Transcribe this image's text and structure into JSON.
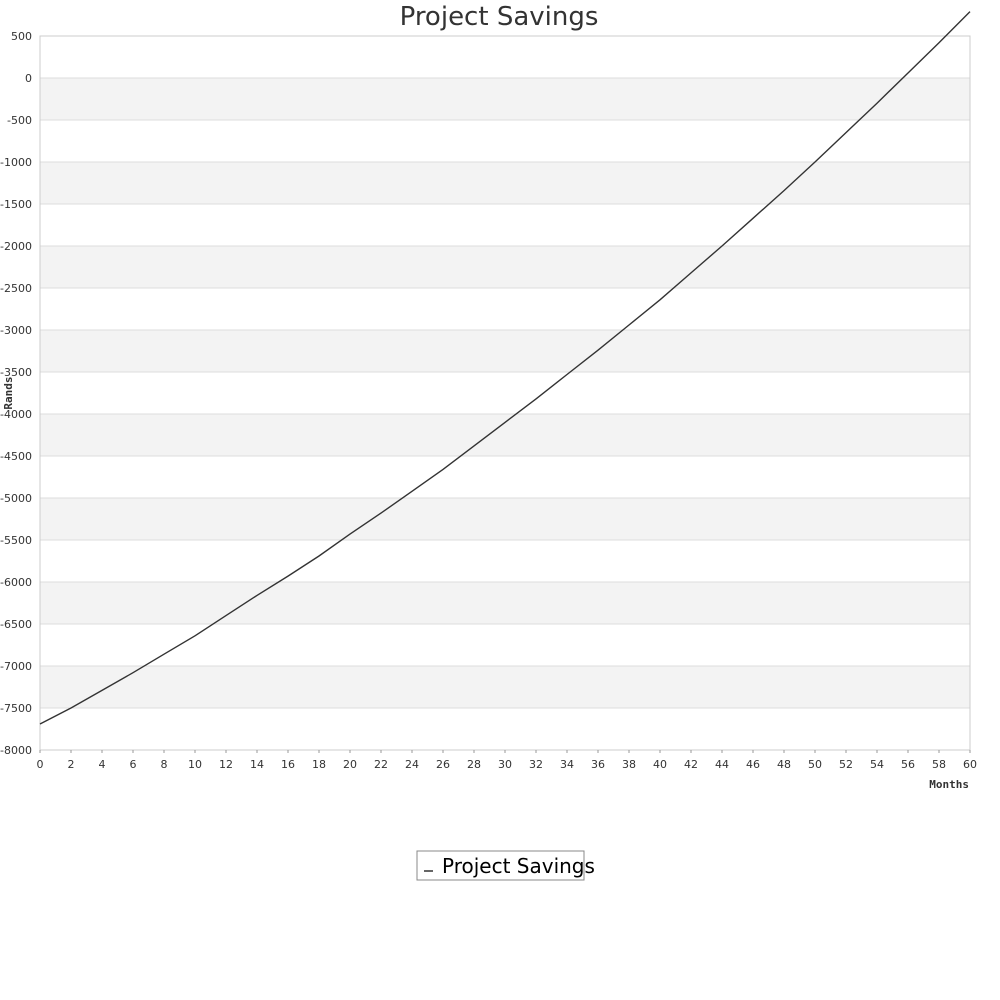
{
  "chart_data": {
    "type": "line",
    "title": "Project Savings",
    "xlabel": "Months",
    "ylabel": "Rands",
    "xlim": [
      0,
      60
    ],
    "ylim": [
      -8000,
      500
    ],
    "x_ticks": [
      0,
      2,
      4,
      6,
      8,
      10,
      12,
      14,
      16,
      18,
      20,
      22,
      24,
      26,
      28,
      30,
      32,
      34,
      36,
      38,
      40,
      42,
      44,
      46,
      48,
      50,
      52,
      54,
      56,
      58,
      60
    ],
    "y_ticks": [
      500,
      0,
      -500,
      -1000,
      -1500,
      -2000,
      -2500,
      -3000,
      -3500,
      -4000,
      -4500,
      -5000,
      -5500,
      -6000,
      -6500,
      -7000,
      -7500,
      -8000
    ],
    "grid": true,
    "legend_position": "bottom-center",
    "series": [
      {
        "name": "Project Savings",
        "color": "#333333",
        "x": [
          0,
          2,
          4,
          6,
          8,
          10,
          12,
          14,
          16,
          18,
          20,
          22,
          24,
          26,
          28,
          30,
          32,
          34,
          36,
          38,
          40,
          42,
          44,
          46,
          48,
          50,
          52,
          54,
          56,
          58,
          60
        ],
        "y": [
          -7690,
          -7500,
          -7290,
          -7080,
          -6860,
          -6640,
          -6400,
          -6160,
          -5930,
          -5690,
          -5430,
          -5180,
          -4920,
          -4660,
          -4380,
          -4100,
          -3820,
          -3530,
          -3240,
          -2940,
          -2640,
          -2320,
          -2000,
          -1670,
          -1340,
          -1000,
          -650,
          -300,
          60,
          420,
          790
        ]
      }
    ]
  }
}
